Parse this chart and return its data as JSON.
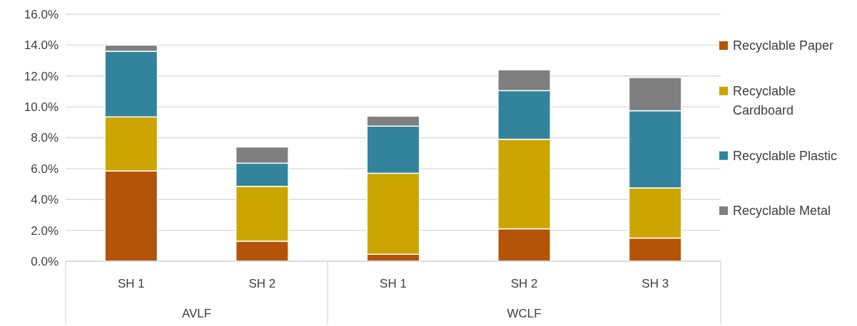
{
  "chart_data": {
    "type": "bar",
    "stacked": true,
    "categories": [
      "SH 1",
      "SH 2",
      "SH 1",
      "SH 2",
      "SH 3"
    ],
    "annotations": [
      "AVLF",
      "WCLF"
    ],
    "series": [
      {
        "name": "Recyclable Paper",
        "color": "#b35408",
        "values": [
          5.85,
          1.3,
          0.45,
          2.1,
          1.5
        ]
      },
      {
        "name": "Recyclable Cardboard",
        "color": "#cca500",
        "values": [
          3.5,
          3.55,
          5.25,
          5.8,
          3.25
        ]
      },
      {
        "name": "Recyclable Plastic",
        "color": "#31849b",
        "values": [
          4.25,
          1.5,
          3.05,
          3.15,
          5.0
        ]
      },
      {
        "name": "Recyclable Metal",
        "color": "#7f7f7f",
        "values": [
          0.4,
          1.05,
          0.65,
          1.35,
          2.15
        ]
      }
    ],
    "ylim": [
      0,
      16
    ],
    "yticks": [
      {
        "value": 0,
        "label": "0.0%"
      },
      {
        "value": 2,
        "label": "2.0%"
      },
      {
        "value": 4,
        "label": "4.0%"
      },
      {
        "value": 6,
        "label": "6.0%"
      },
      {
        "value": 8,
        "label": "8.0%"
      },
      {
        "value": 10,
        "label": "10.0%"
      },
      {
        "value": 12,
        "label": "12.0%"
      },
      {
        "value": 14,
        "label": "14.0%"
      },
      {
        "value": 16,
        "label": "16.0%"
      }
    ],
    "grid": "y",
    "legend": "right"
  }
}
